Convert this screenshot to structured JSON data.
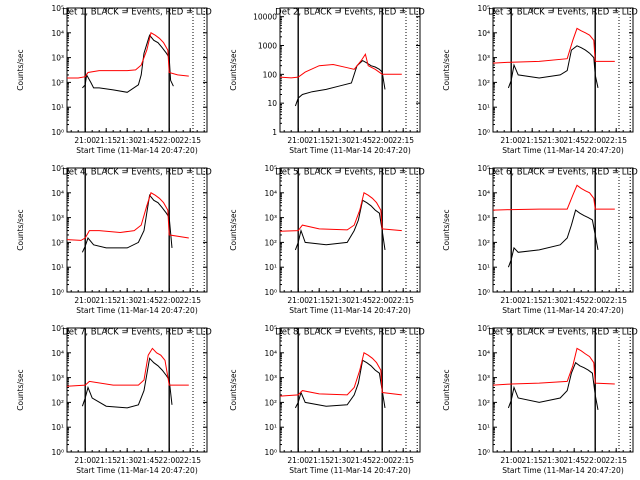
{
  "chart_data": [
    {
      "type": "line",
      "title": "Det 1, BLACK = Events, RED = LLD",
      "xlabel": "Start Time (11-Mar-14 20:47:20)",
      "ylabel": "Counts/sec",
      "y_scale": "log",
      "ylim": [
        1,
        100000
      ],
      "y_ticks": [
        "10⁰",
        "10¹",
        "10²",
        "10³",
        "10⁴",
        "10⁵"
      ],
      "y_tick_values": [
        1,
        10,
        100,
        1000,
        10000,
        100000
      ],
      "x_ticks": [
        "21:00",
        "21:15",
        "21:30",
        "21:45",
        "22:00",
        "22:15"
      ],
      "markers": [
        "21:00",
        "22:00"
      ],
      "series": [
        {
          "name": "Events",
          "color": "#000000",
          "x": [
            "20:58",
            "21:00",
            "21:01",
            "21:04",
            "21:06",
            "21:10",
            "21:20",
            "21:30",
            "21:38",
            "21:40",
            "21:42",
            "21:46",
            "21:49",
            "21:52",
            "21:55",
            "21:58",
            "22:00",
            "22:01",
            "22:03"
          ],
          "y": [
            60,
            80,
            200,
            100,
            60,
            60,
            50,
            40,
            80,
            200,
            1500,
            8000,
            5000,
            4000,
            2500,
            1500,
            1000,
            120,
            70
          ]
        },
        {
          "name": "LLD",
          "color": "#ff0000",
          "x": [
            "20:47",
            "20:55",
            "21:00",
            "21:02",
            "21:10",
            "21:20",
            "21:30",
            "21:36",
            "21:40",
            "21:44",
            "21:47",
            "21:50",
            "21:53",
            "21:56",
            "21:59",
            "22:00",
            "22:06",
            "22:14"
          ],
          "y": [
            150,
            150,
            170,
            250,
            300,
            300,
            300,
            320,
            500,
            2000,
            10000,
            8000,
            6000,
            4000,
            2000,
            250,
            200,
            180
          ]
        }
      ]
    },
    {
      "type": "line",
      "title": "Det 2, BLACK = Events, RED = LLD",
      "xlabel": "Start Time (11-Mar-14 20:47:20)",
      "ylabel": "Counts/sec",
      "y_scale": "log",
      "ylim": [
        1,
        20000
      ],
      "y_ticks": [
        "1",
        "10",
        "100",
        "1000",
        "10000"
      ],
      "y_tick_values": [
        1,
        10,
        100,
        1000,
        10000
      ],
      "x_ticks": [
        "21:00",
        "21:15",
        "21:30",
        "21:45",
        "22:00",
        "22:15"
      ],
      "markers": [
        "21:00",
        "22:00"
      ],
      "series": [
        {
          "name": "Events",
          "color": "#000000",
          "x": [
            "20:58",
            "21:00",
            "21:03",
            "21:10",
            "21:20",
            "21:30",
            "21:38",
            "21:42",
            "21:46",
            "21:49",
            "21:52",
            "21:55",
            "21:58",
            "22:00",
            "22:02"
          ],
          "y": [
            8,
            15,
            20,
            25,
            30,
            40,
            50,
            200,
            300,
            250,
            200,
            180,
            150,
            120,
            30
          ]
        },
        {
          "name": "LLD",
          "color": "#ff0000",
          "x": [
            "20:47",
            "20:55",
            "21:00",
            "21:05",
            "21:15",
            "21:25",
            "21:35",
            "21:40",
            "21:45",
            "21:48",
            "21:50",
            "21:55",
            "22:00",
            "22:10",
            "22:14"
          ],
          "y": [
            80,
            75,
            80,
            120,
            200,
            220,
            170,
            150,
            300,
            500,
            200,
            150,
            100,
            100,
            100
          ]
        }
      ]
    },
    {
      "type": "line",
      "title": "Det 3, BLACK = Events, RED = LLD",
      "xlabel": "Start Time (11-Mar-14 20:47:20)",
      "ylabel": "Counts/sec",
      "y_scale": "log",
      "ylim": [
        1,
        100000
      ],
      "y_ticks": [
        "10⁰",
        "10¹",
        "10²",
        "10³",
        "10⁴",
        "10⁵"
      ],
      "y_tick_values": [
        1,
        10,
        100,
        1000,
        10000,
        100000
      ],
      "x_ticks": [
        "21:00",
        "21:15",
        "21:30",
        "21:45",
        "22:00",
        "22:15"
      ],
      "markers": [
        "21:00",
        "22:00"
      ],
      "series": [
        {
          "name": "Events",
          "color": "#000000",
          "x": [
            "20:58",
            "21:00",
            "21:02",
            "21:05",
            "21:20",
            "21:35",
            "21:40",
            "21:43",
            "21:47",
            "21:50",
            "21:53",
            "21:56",
            "21:59",
            "22:00",
            "22:02"
          ],
          "y": [
            60,
            120,
            500,
            200,
            150,
            200,
            300,
            2000,
            3000,
            2500,
            2000,
            1500,
            1000,
            200,
            60
          ]
        },
        {
          "name": "LLD",
          "color": "#ff0000",
          "x": [
            "20:47",
            "21:00",
            "21:20",
            "21:40",
            "21:44",
            "21:47",
            "21:50",
            "21:53",
            "21:56",
            "21:59",
            "22:00",
            "22:14"
          ],
          "y": [
            600,
            650,
            700,
            900,
            5000,
            15000,
            12000,
            10000,
            8000,
            5000,
            700,
            700
          ]
        }
      ]
    },
    {
      "type": "line",
      "title": "Det 4, BLACK = Events, RED = LLD",
      "xlabel": "Start Time (11-Mar-14 20:47:20)",
      "ylabel": "Counts/sec",
      "y_scale": "log",
      "ylim": [
        1,
        100000
      ],
      "y_ticks": [
        "10⁰",
        "10¹",
        "10²",
        "10³",
        "10⁴",
        "10⁵"
      ],
      "y_tick_values": [
        1,
        10,
        100,
        1000,
        10000,
        100000
      ],
      "x_ticks": [
        "21:00",
        "21:15",
        "21:30",
        "21:45",
        "22:00",
        "22:15"
      ],
      "markers": [
        "21:00",
        "22:00"
      ],
      "series": [
        {
          "name": "Events",
          "color": "#000000",
          "x": [
            "20:58",
            "21:00",
            "21:02",
            "21:06",
            "21:15",
            "21:30",
            "21:38",
            "21:42",
            "21:46",
            "21:49",
            "21:52",
            "21:55",
            "21:58",
            "22:00",
            "22:02"
          ],
          "y": [
            40,
            70,
            150,
            80,
            60,
            60,
            100,
            300,
            8000,
            5000,
            4000,
            2500,
            1500,
            1000,
            60
          ]
        },
        {
          "name": "LLD",
          "color": "#ff0000",
          "x": [
            "20:47",
            "20:57",
            "21:00",
            "21:03",
            "21:10",
            "21:25",
            "21:35",
            "21:40",
            "21:44",
            "21:47",
            "21:50",
            "21:53",
            "21:56",
            "21:59",
            "22:00",
            "22:14"
          ],
          "y": [
            130,
            120,
            150,
            300,
            300,
            250,
            300,
            500,
            3000,
            10000,
            8000,
            6000,
            4000,
            2000,
            200,
            150
          ]
        }
      ]
    },
    {
      "type": "line",
      "title": "Det 5, BLACK = Events, RED = LLD",
      "xlabel": "Start Time (11-Mar-14 20:47:20)",
      "ylabel": "Counts/sec",
      "y_scale": "log",
      "ylim": [
        1,
        100000
      ],
      "y_ticks": [
        "10⁰",
        "10¹",
        "10²",
        "10³",
        "10⁴",
        "10⁵"
      ],
      "y_tick_values": [
        1,
        10,
        100,
        1000,
        10000,
        100000
      ],
      "x_ticks": [
        "21:00",
        "21:15",
        "21:30",
        "21:45",
        "22:00",
        "22:15"
      ],
      "markers": [
        "21:00",
        "22:00"
      ],
      "series": [
        {
          "name": "Events",
          "color": "#000000",
          "x": [
            "20:58",
            "21:00",
            "21:02",
            "21:05",
            "21:20",
            "21:35",
            "21:40",
            "21:43",
            "21:46",
            "21:49",
            "21:52",
            "21:55",
            "21:58",
            "22:00",
            "22:02"
          ],
          "y": [
            50,
            100,
            300,
            100,
            80,
            100,
            300,
            800,
            5000,
            4000,
            3000,
            2000,
            1500,
            300,
            50
          ]
        },
        {
          "name": "LLD",
          "color": "#ff0000",
          "x": [
            "20:47",
            "21:00",
            "21:03",
            "21:15",
            "21:35",
            "21:40",
            "21:44",
            "21:47",
            "21:50",
            "21:53",
            "21:56",
            "21:59",
            "22:00",
            "22:14"
          ],
          "y": [
            280,
            300,
            500,
            350,
            320,
            500,
            2000,
            10000,
            8000,
            6000,
            4000,
            2000,
            350,
            300
          ]
        }
      ]
    },
    {
      "type": "line",
      "title": "Det 6, BLACK = Events, RED = LLD",
      "xlabel": "Start Time (11-Mar-14 20:47:20)",
      "ylabel": "Counts/sec",
      "y_scale": "log",
      "ylim": [
        1,
        100000
      ],
      "y_ticks": [
        "10⁰",
        "10¹",
        "10²",
        "10³",
        "10⁴",
        "10⁵"
      ],
      "y_tick_values": [
        1,
        10,
        100,
        1000,
        10000,
        100000
      ],
      "x_ticks": [
        "21:00",
        "21:15",
        "21:30",
        "21:45",
        "22:00",
        "22:15"
      ],
      "markers": [
        "21:00",
        "22:00"
      ],
      "series": [
        {
          "name": "Events",
          "color": "#000000",
          "x": [
            "20:58",
            "21:00",
            "21:02",
            "21:05",
            "21:20",
            "21:35",
            "21:40",
            "21:43",
            "21:46",
            "21:49",
            "21:52",
            "21:55",
            "21:58",
            "22:00",
            "22:02"
          ],
          "y": [
            10,
            20,
            60,
            40,
            50,
            80,
            150,
            500,
            2000,
            1500,
            1200,
            1000,
            800,
            200,
            50
          ]
        },
        {
          "name": "LLD",
          "color": "#ff0000",
          "x": [
            "20:47",
            "21:00",
            "21:20",
            "21:40",
            "21:44",
            "21:47",
            "21:50",
            "21:53",
            "21:56",
            "21:59",
            "22:00",
            "22:14"
          ],
          "y": [
            2000,
            2100,
            2200,
            2200,
            8000,
            20000,
            15000,
            12000,
            10000,
            6000,
            2200,
            2200
          ]
        }
      ]
    },
    {
      "type": "line",
      "title": "Det 7, BLACK = Events, RED = LLD",
      "xlabel": "Start Time (11-Mar-14 20:47:20)",
      "ylabel": "Counts/sec",
      "y_scale": "log",
      "ylim": [
        1,
        100000
      ],
      "y_ticks": [
        "10⁰",
        "10¹",
        "10²",
        "10³",
        "10⁴",
        "10⁵"
      ],
      "y_tick_values": [
        1,
        10,
        100,
        1000,
        10000,
        100000
      ],
      "x_ticks": [
        "21:00",
        "21:15",
        "21:30",
        "21:45",
        "22:00",
        "22:15"
      ],
      "markers": [
        "21:00",
        "22:00"
      ],
      "series": [
        {
          "name": "Events",
          "color": "#000000",
          "x": [
            "20:58",
            "21:00",
            "21:02",
            "21:05",
            "21:15",
            "21:30",
            "21:38",
            "21:42",
            "21:46",
            "21:49",
            "21:52",
            "21:55",
            "21:58",
            "22:00",
            "22:02"
          ],
          "y": [
            70,
            150,
            400,
            150,
            70,
            60,
            80,
            300,
            6000,
            4000,
            3000,
            2000,
            1200,
            800,
            80
          ]
        },
        {
          "name": "LLD",
          "color": "#ff0000",
          "x": [
            "20:47",
            "21:00",
            "21:03",
            "21:20",
            "21:38",
            "21:42",
            "21:45",
            "21:48",
            "21:51",
            "21:54",
            "21:57",
            "22:00",
            "22:14"
          ],
          "y": [
            450,
            500,
            700,
            500,
            500,
            800,
            8000,
            15000,
            10000,
            8000,
            5000,
            500,
            500
          ]
        }
      ]
    },
    {
      "type": "line",
      "title": "Det 8, BLACK = Events, RED = LLD",
      "xlabel": "Start Time (11-Mar-14 20:47:20)",
      "ylabel": "Counts/sec",
      "y_scale": "log",
      "ylim": [
        1,
        100000
      ],
      "y_ticks": [
        "10⁰",
        "10¹",
        "10²",
        "10³",
        "10⁴",
        "10⁵"
      ],
      "y_tick_values": [
        1,
        10,
        100,
        1000,
        10000,
        100000
      ],
      "x_ticks": [
        "21:00",
        "21:15",
        "21:30",
        "21:45",
        "22:00",
        "22:15"
      ],
      "markers": [
        "21:00",
        "22:00"
      ],
      "series": [
        {
          "name": "Events",
          "color": "#000000",
          "x": [
            "20:58",
            "21:00",
            "21:02",
            "21:05",
            "21:20",
            "21:35",
            "21:40",
            "21:43",
            "21:46",
            "21:49",
            "21:52",
            "21:55",
            "21:58",
            "22:00",
            "22:02"
          ],
          "y": [
            60,
            100,
            250,
            100,
            70,
            80,
            200,
            600,
            5000,
            4000,
            3000,
            2000,
            1500,
            300,
            60
          ]
        },
        {
          "name": "LLD",
          "color": "#ff0000",
          "x": [
            "20:47",
            "21:00",
            "21:03",
            "21:15",
            "21:35",
            "21:40",
            "21:44",
            "21:47",
            "21:50",
            "21:53",
            "21:56",
            "21:59",
            "22:00",
            "22:14"
          ],
          "y": [
            180,
            200,
            300,
            220,
            200,
            400,
            2000,
            10000,
            8000,
            6000,
            4000,
            2000,
            250,
            200
          ]
        }
      ]
    },
    {
      "type": "line",
      "title": "Det 9, BLACK = Events, RED = LLD",
      "xlabel": "Start Time (11-Mar-14 20:47:20)",
      "ylabel": "Counts/sec",
      "y_scale": "log",
      "ylim": [
        1,
        100000
      ],
      "y_ticks": [
        "10⁰",
        "10¹",
        "10²",
        "10³",
        "10⁴",
        "10⁵"
      ],
      "y_tick_values": [
        1,
        10,
        100,
        1000,
        10000,
        100000
      ],
      "x_ticks": [
        "21:00",
        "21:15",
        "21:30",
        "21:45",
        "22:00",
        "22:15"
      ],
      "markers": [
        "21:00",
        "22:00"
      ],
      "series": [
        {
          "name": "Events",
          "color": "#000000",
          "x": [
            "20:58",
            "21:00",
            "21:02",
            "21:05",
            "21:20",
            "21:35",
            "21:40",
            "21:43",
            "21:46",
            "21:49",
            "21:52",
            "21:55",
            "21:58",
            "22:00",
            "22:02"
          ],
          "y": [
            60,
            120,
            400,
            150,
            100,
            150,
            300,
            1500,
            4000,
            3000,
            2500,
            2000,
            1500,
            200,
            50
          ]
        },
        {
          "name": "LLD",
          "color": "#ff0000",
          "x": [
            "20:47",
            "21:00",
            "21:20",
            "21:40",
            "21:44",
            "21:47",
            "21:50",
            "21:53",
            "21:56",
            "21:59",
            "22:00",
            "22:14"
          ],
          "y": [
            500,
            550,
            600,
            700,
            3000,
            15000,
            12000,
            9000,
            7000,
            4000,
            600,
            550
          ]
        }
      ]
    }
  ]
}
